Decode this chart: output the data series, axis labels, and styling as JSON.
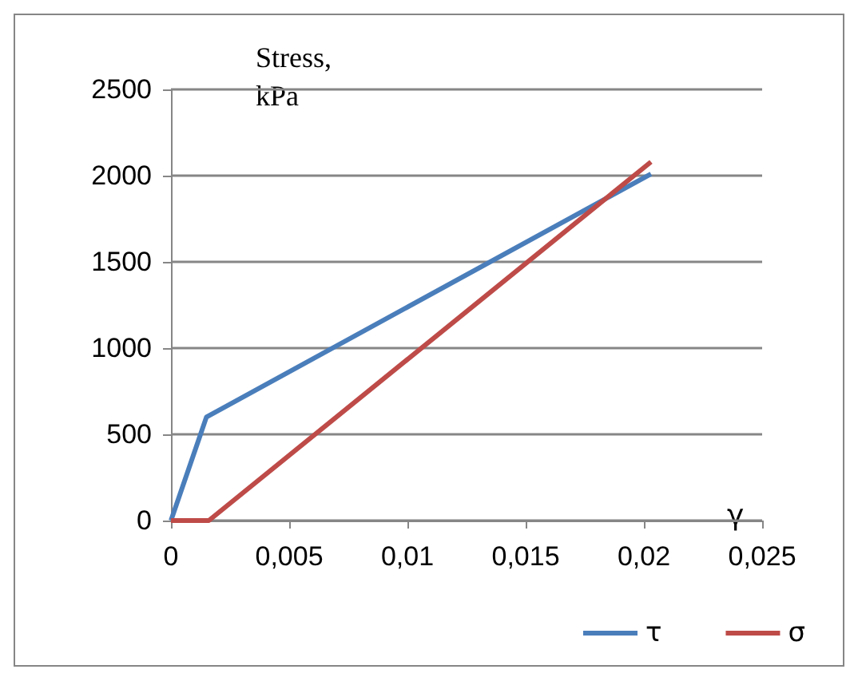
{
  "chart_data": {
    "type": "line",
    "ylabel": "Stress,\nkPa",
    "xlabel": "γ",
    "series": [
      {
        "name": "τ",
        "color": "#4a7ebb",
        "x": [
          0,
          0.0015,
          0.0203
        ],
        "values": [
          0,
          600,
          2010
        ]
      },
      {
        "name": "σ",
        "color": "#be4b48",
        "x": [
          0,
          0.0016,
          0.0203
        ],
        "values": [
          0,
          0,
          2080
        ]
      }
    ],
    "xlim": [
      0,
      0.025
    ],
    "xticks": [
      0,
      {
        "value": 0.005,
        "label": "0,005"
      },
      {
        "value": 0.01,
        "label": "0,01"
      },
      {
        "value": 0.015,
        "label": "0,015"
      },
      {
        "value": 0.02,
        "label": "0,02"
      },
      {
        "value": 0.025,
        "label": "0,025"
      }
    ],
    "ylim": [
      0,
      2500
    ],
    "yticks": [
      0,
      500,
      1000,
      1500,
      2000,
      2500
    ],
    "grid": "y",
    "legend": "bottom right",
    "marker": "none",
    "line_style": "solid"
  }
}
